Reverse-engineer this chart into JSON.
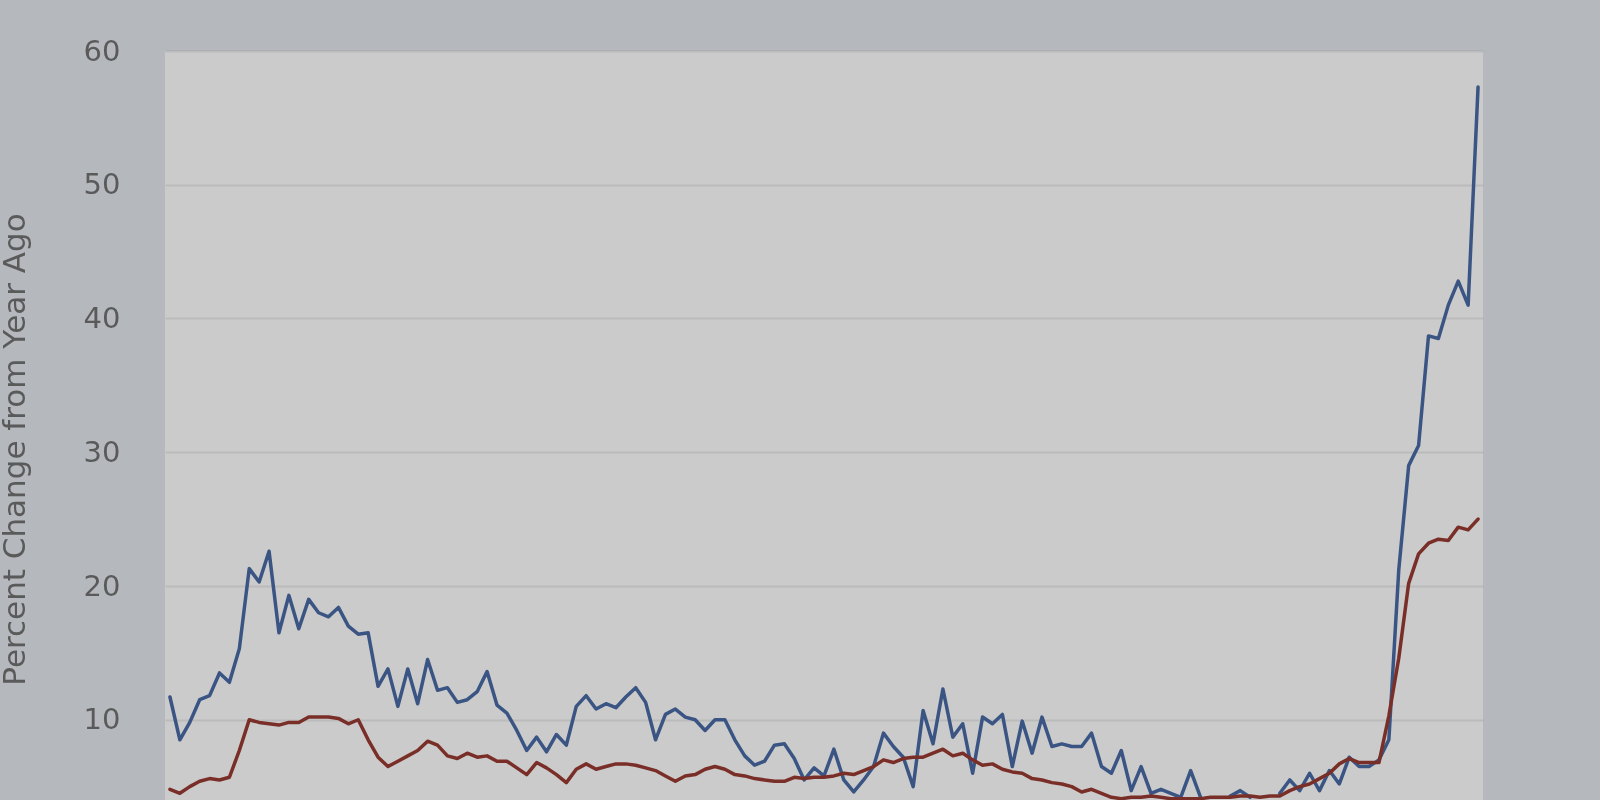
{
  "chart_data": {
    "type": "line",
    "ylabel": "Percent Change from Year Ago",
    "categories": [
      null,
      null,
      null,
      null,
      null,
      null,
      null,
      null,
      null,
      null,
      null,
      null,
      null,
      null,
      null,
      null,
      null,
      null,
      null,
      null,
      null,
      null,
      null,
      null,
      null,
      null,
      null,
      null,
      null,
      null,
      null,
      null,
      null,
      null,
      null,
      null,
      null,
      null,
      null,
      null,
      null,
      null,
      null,
      null,
      null,
      null,
      null,
      null,
      null,
      null,
      null,
      null,
      null,
      null,
      null,
      null,
      null,
      null,
      null,
      null,
      null,
      null,
      null,
      null,
      null,
      null,
      null,
      null,
      null,
      null,
      null,
      null,
      null,
      null,
      null,
      null,
      null,
      null,
      null,
      null,
      null,
      null,
      null,
      null,
      null,
      null,
      null,
      null,
      null,
      null,
      null,
      null,
      null,
      null,
      null,
      null,
      null,
      null,
      null,
      null,
      null,
      null,
      null,
      null,
      null,
      null,
      null,
      null,
      null,
      null,
      null,
      null,
      null,
      null,
      null,
      null,
      null,
      null,
      null,
      null,
      null,
      null,
      null,
      null,
      null,
      null,
      null,
      null,
      null,
      null,
      null,
      null,
      null
    ],
    "ylim": [
      4,
      60
    ],
    "yticks": [
      10,
      20,
      30,
      40,
      50,
      60
    ],
    "grid": "y",
    "series": [
      {
        "color": "#3a5583",
        "values": [
          11.7,
          8.5,
          9.8,
          11.5,
          11.8,
          13.5,
          12.8,
          15.3,
          21.3,
          20.3,
          22.6,
          16.5,
          19.3,
          16.8,
          19.0,
          18.0,
          17.7,
          18.4,
          17.0,
          16.4,
          16.5,
          12.5,
          13.8,
          11.0,
          13.8,
          11.2,
          14.5,
          12.2,
          12.4,
          11.3,
          11.5,
          12.1,
          13.6,
          11.1,
          10.5,
          9.2,
          7.7,
          8.7,
          7.6,
          8.9,
          8.1,
          11.0,
          11.8,
          10.8,
          11.2,
          10.9,
          11.7,
          12.4,
          11.3,
          8.5,
          10.4,
          10.8,
          10.2,
          10.0,
          9.2,
          10.0,
          10.0,
          8.5,
          7.3,
          6.6,
          6.9,
          8.1,
          8.2,
          7.1,
          5.5,
          6.4,
          5.8,
          7.8,
          5.5,
          4.6,
          5.5,
          6.5,
          9.0,
          8.0,
          7.2,
          5.0,
          10.7,
          8.2,
          12.3,
          8.7,
          9.7,
          6.0,
          10.2,
          9.7,
          10.4,
          6.5,
          9.9,
          7.5,
          10.2,
          8.0,
          8.2,
          8.0,
          8.0,
          9.0,
          6.5,
          6.0,
          7.7,
          4.7,
          6.5,
          4.5,
          4.8,
          4.5,
          4.2,
          6.2,
          4.2,
          null,
          null,
          4.3,
          4.7,
          4.2,
          null,
          null,
          4.5,
          5.5,
          4.7,
          6.0,
          4.7,
          6.2,
          5.2,
          7.2,
          6.5,
          6.5,
          7.0,
          8.5,
          21.2,
          29.0,
          30.5,
          38.7,
          38.5,
          41.0,
          42.8,
          41.0,
          57.3
        ]
      },
      {
        "color": "#7a2e28",
        "values": [
          4.8,
          4.5,
          5.0,
          5.4,
          5.6,
          5.5,
          5.7,
          7.7,
          10.0,
          9.8,
          9.7,
          9.6,
          9.8,
          9.8,
          10.2,
          10.2,
          10.2,
          10.1,
          9.7,
          10.0,
          8.5,
          7.2,
          6.5,
          6.9,
          7.3,
          7.7,
          8.4,
          8.1,
          7.3,
          7.1,
          7.5,
          7.2,
          7.3,
          6.9,
          6.9,
          6.4,
          5.9,
          6.8,
          6.4,
          5.9,
          5.3,
          6.3,
          6.7,
          6.3,
          6.5,
          6.7,
          6.7,
          6.6,
          6.4,
          6.2,
          5.8,
          5.4,
          5.8,
          5.9,
          6.3,
          6.5,
          6.3,
          5.9,
          5.8,
          5.6,
          5.5,
          5.4,
          5.4,
          5.7,
          5.6,
          5.7,
          5.7,
          5.8,
          6.0,
          5.9,
          6.2,
          6.5,
          7.0,
          6.8,
          7.1,
          7.2,
          7.2,
          7.5,
          7.8,
          7.3,
          7.5,
          7.0,
          6.6,
          6.7,
          6.3,
          6.1,
          6.0,
          5.6,
          5.5,
          5.3,
          5.2,
          5.0,
          4.6,
          4.8,
          4.5,
          4.2,
          4.1,
          4.2,
          4.2,
          4.3,
          4.2,
          4.1,
          4.1,
          4.1,
          4.1,
          4.2,
          4.2,
          4.2,
          4.3,
          4.3,
          4.2,
          4.3,
          4.3,
          4.7,
          5.0,
          5.2,
          5.6,
          6.0,
          6.7,
          7.1,
          6.8,
          6.8,
          6.8,
          10.3,
          14.6,
          20.2,
          22.4,
          23.2,
          23.5,
          23.4,
          24.4,
          24.2,
          25.0
        ]
      }
    ]
  }
}
